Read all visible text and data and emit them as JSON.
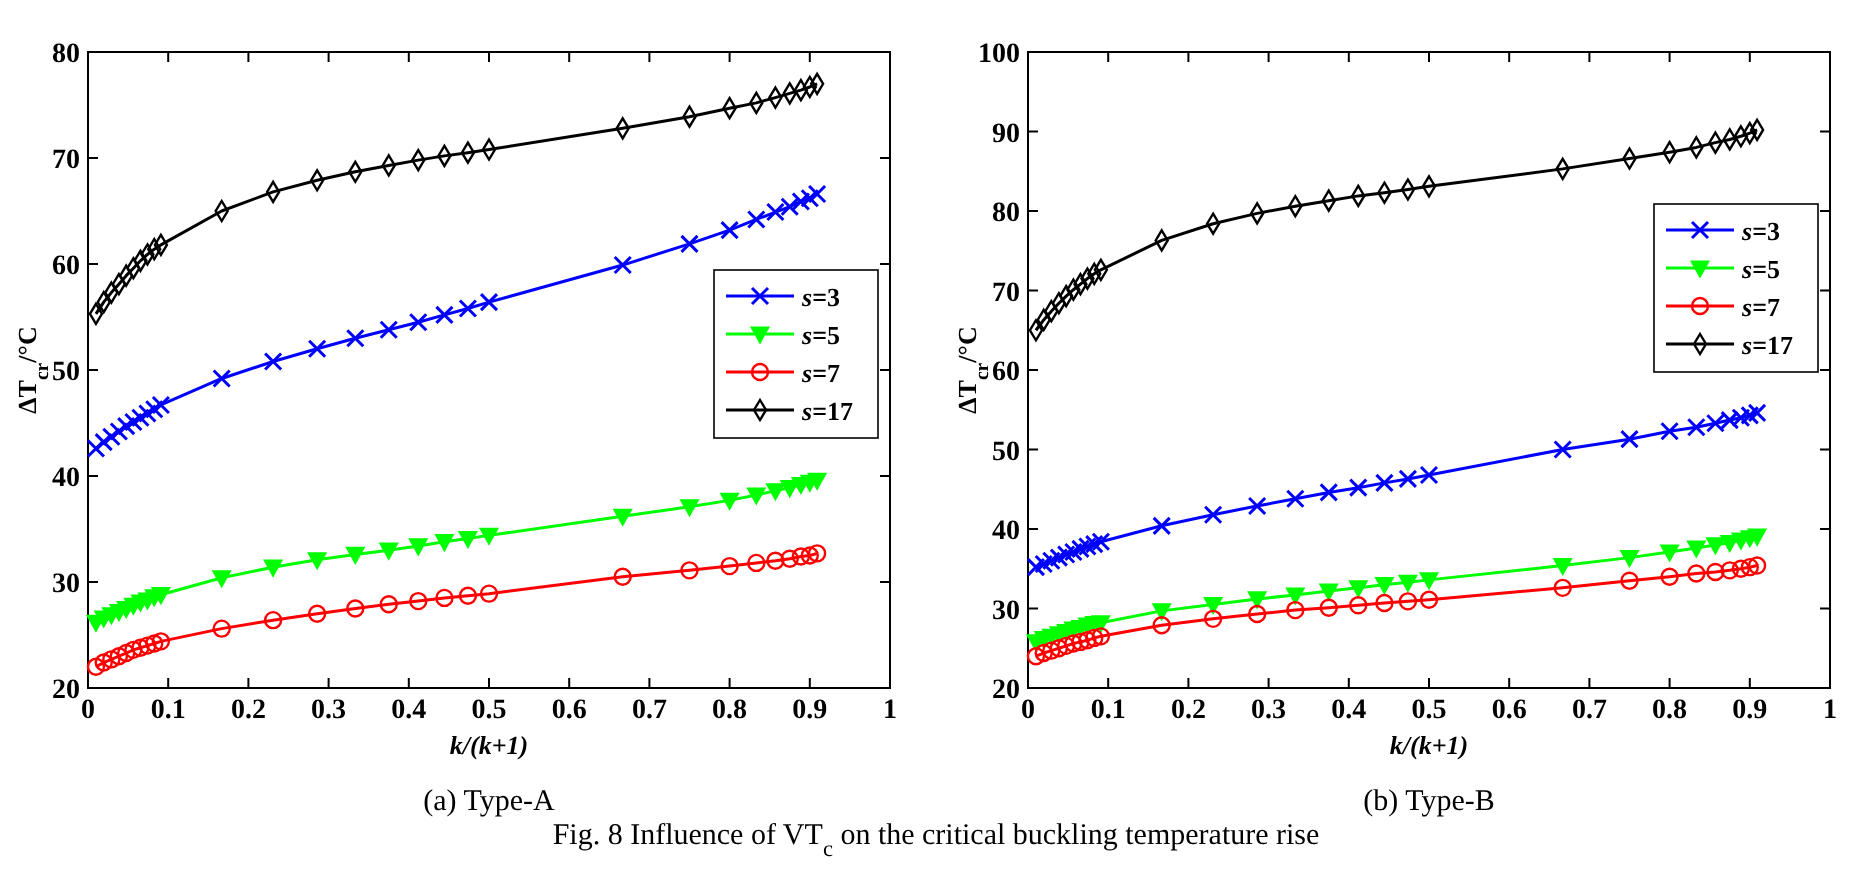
{
  "chart_data": [
    {
      "type": "line",
      "title": "(a) Type-A",
      "xlabel": "k/(k+1)",
      "ylabel": "ΔT$_{cr}$/°C",
      "xlim": [
        0,
        1
      ],
      "xticks": [
        0,
        0.1,
        0.2,
        0.3,
        0.4,
        0.5,
        0.6,
        0.7,
        0.8,
        0.9,
        1
      ],
      "ylim": [
        20,
        80
      ],
      "yticks": [
        20,
        30,
        40,
        50,
        60,
        70,
        80
      ],
      "legend": "right",
      "grid": false,
      "line_style": "solid",
      "annotations": [
        "Fig. 8 Influence of VT$_{c}$ on the critical buckling temperature rise"
      ],
      "x": [
        0.0099,
        0.0196,
        0.0291,
        0.0385,
        0.0476,
        0.0566,
        0.0654,
        0.0741,
        0.0826,
        0.0909,
        0.1667,
        0.2308,
        0.2857,
        0.3333,
        0.375,
        0.4118,
        0.4444,
        0.4737,
        0.5,
        0.6667,
        0.75,
        0.8,
        0.8333,
        0.8571,
        0.875,
        0.8889,
        0.9,
        0.9091
      ],
      "series": [
        {
          "name": "s=3",
          "color": "#0000ff",
          "marker": "cross",
          "values": [
            42.6,
            43.2,
            43.7,
            44.2,
            44.7,
            45.1,
            45.5,
            45.9,
            46.3,
            46.7,
            49.2,
            50.8,
            52.0,
            53.0,
            53.8,
            54.5,
            55.2,
            55.8,
            56.4,
            59.9,
            61.9,
            63.2,
            64.2,
            64.9,
            65.4,
            65.9,
            66.2,
            66.6
          ]
        },
        {
          "name": "s=5",
          "color": "#00ff00",
          "marker": "triangle",
          "values": [
            26.2,
            26.6,
            26.9,
            27.2,
            27.5,
            27.8,
            28.1,
            28.3,
            28.6,
            28.8,
            30.4,
            31.4,
            32.1,
            32.6,
            33.0,
            33.4,
            33.8,
            34.1,
            34.4,
            36.2,
            37.1,
            37.7,
            38.2,
            38.6,
            38.9,
            39.2,
            39.4,
            39.6
          ]
        },
        {
          "name": "s=7",
          "color": "#ff0000",
          "marker": "circle",
          "values": [
            22.0,
            22.4,
            22.7,
            23.0,
            23.3,
            23.6,
            23.8,
            24.0,
            24.2,
            24.4,
            25.6,
            26.4,
            27.0,
            27.5,
            27.9,
            28.2,
            28.5,
            28.7,
            28.9,
            30.5,
            31.1,
            31.5,
            31.8,
            32.0,
            32.2,
            32.4,
            32.5,
            32.7
          ]
        },
        {
          "name": "s=17",
          "color": "#000000",
          "marker": "diamond",
          "values": [
            55.3,
            56.4,
            57.3,
            58.1,
            58.9,
            59.6,
            60.3,
            60.9,
            61.4,
            61.8,
            65.0,
            66.8,
            67.9,
            68.7,
            69.3,
            69.8,
            70.2,
            70.5,
            70.8,
            72.8,
            73.9,
            74.7,
            75.2,
            75.7,
            76.1,
            76.4,
            76.7,
            77.0
          ]
        }
      ]
    },
    {
      "type": "line",
      "title": "(b) Type-B",
      "xlabel": "k/(k+1)",
      "ylabel": "ΔT$_{cr}$/°C",
      "xlim": [
        0,
        1
      ],
      "xticks": [
        0,
        0.1,
        0.2,
        0.3,
        0.4,
        0.5,
        0.6,
        0.7,
        0.8,
        0.9,
        1
      ],
      "ylim": [
        20,
        100
      ],
      "yticks": [
        20,
        30,
        40,
        50,
        60,
        70,
        80,
        90,
        100
      ],
      "legend": "right",
      "grid": false,
      "line_style": "solid",
      "x": [
        0.0099,
        0.0196,
        0.0291,
        0.0385,
        0.0476,
        0.0566,
        0.0654,
        0.0741,
        0.0826,
        0.0909,
        0.1667,
        0.2308,
        0.2857,
        0.3333,
        0.375,
        0.4118,
        0.4444,
        0.4737,
        0.5,
        0.6667,
        0.75,
        0.8,
        0.8333,
        0.8571,
        0.875,
        0.8889,
        0.9,
        0.9091
      ],
      "series": [
        {
          "name": "s=3",
          "color": "#0000ff",
          "marker": "cross",
          "values": [
            35.2,
            35.6,
            36.0,
            36.4,
            36.8,
            37.1,
            37.5,
            37.8,
            38.1,
            38.4,
            40.4,
            41.8,
            42.9,
            43.8,
            44.6,
            45.2,
            45.8,
            46.3,
            46.8,
            50.0,
            51.3,
            52.3,
            52.8,
            53.3,
            53.7,
            54.0,
            54.3,
            54.6
          ]
        },
        {
          "name": "s=5",
          "color": "#00ff00",
          "marker": "triangle",
          "values": [
            25.8,
            26.2,
            26.5,
            26.8,
            27.1,
            27.4,
            27.6,
            27.9,
            28.1,
            28.2,
            29.7,
            30.5,
            31.2,
            31.7,
            32.2,
            32.6,
            33.0,
            33.3,
            33.6,
            35.4,
            36.4,
            37.1,
            37.6,
            38.0,
            38.3,
            38.6,
            38.9,
            39.1
          ]
        },
        {
          "name": "s=7",
          "color": "#ff0000",
          "marker": "circle",
          "values": [
            24.0,
            24.4,
            24.7,
            25.0,
            25.3,
            25.6,
            25.8,
            26.0,
            26.3,
            26.5,
            27.9,
            28.7,
            29.3,
            29.8,
            30.1,
            30.4,
            30.7,
            30.9,
            31.1,
            32.6,
            33.5,
            34.0,
            34.4,
            34.6,
            34.8,
            35.0,
            35.2,
            35.4
          ]
        },
        {
          "name": "s=17",
          "color": "#000000",
          "marker": "diamond",
          "values": [
            65.0,
            66.3,
            67.4,
            68.4,
            69.3,
            70.1,
            70.8,
            71.5,
            72.1,
            72.6,
            76.3,
            78.4,
            79.7,
            80.6,
            81.3,
            81.9,
            82.3,
            82.7,
            83.1,
            85.3,
            86.6,
            87.4,
            88.0,
            88.6,
            89.0,
            89.4,
            89.8,
            90.2
          ]
        }
      ]
    }
  ]
}
